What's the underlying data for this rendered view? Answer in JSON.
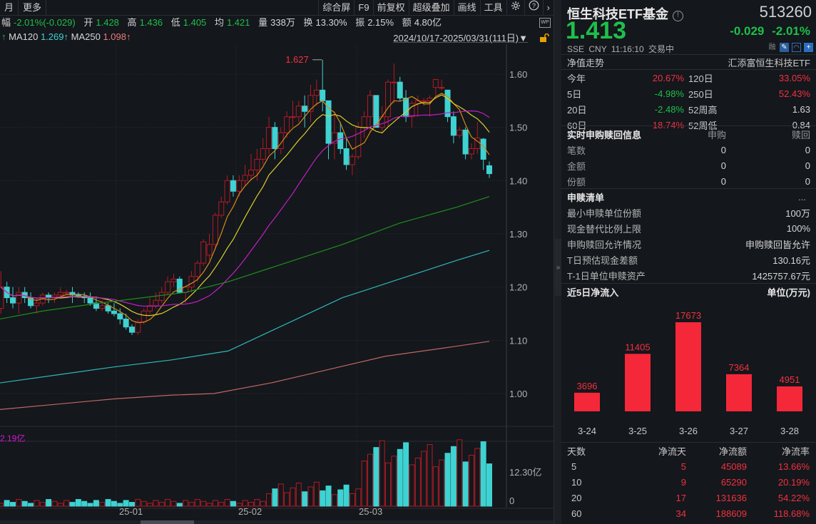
{
  "toolbar": {
    "left_items": [
      "月",
      "更多"
    ],
    "right_items": [
      "综合屏",
      "F9",
      "前复权",
      "超级叠加",
      "画线",
      "工具"
    ],
    "settings_icon": "gear-icon",
    "help_icon": "question-icon",
    "next_icon": "chevron-right-icon"
  },
  "quote_bar": {
    "change_label": "幅",
    "change_value": "-2.01%(-0.029)",
    "open_label": "开",
    "open_value": "1.428",
    "high_label": "高",
    "high_value": "1.436",
    "low_label": "低",
    "low_value": "1.405",
    "avg_label": "均",
    "avg_value": "1.421",
    "volume_label": "量",
    "volume_value": "338万",
    "turnover_label": "换",
    "turnover_value": "13.30%",
    "amplitude_label": "振",
    "amplitude_value": "2.15%",
    "amount_label": "额",
    "amount_value": "4.80亿"
  },
  "ma_bar": {
    "arrow": "↑",
    "ma120_label": "MA120",
    "ma120_value": "1.269↑",
    "ma250_label": "MA250",
    "ma250_value": "1.098↑"
  },
  "date_range": "2024/10/17-2025/03/31(111日)▼",
  "chart": {
    "y_ticks": [
      "1.60",
      "1.50",
      "1.40",
      "1.30",
      "1.20",
      "1.10",
      "1.00"
    ],
    "x_ticks": [
      "25-01",
      "25-02",
      "25-03"
    ],
    "max_label": "1.627",
    "volume_max_label": "2.19亿",
    "volume_ticks": [
      "12.30亿",
      "0"
    ]
  },
  "colors": {
    "up": "#f2313e",
    "down": "#3fd2d2",
    "up_candle": "#b01c24",
    "ma5": "#e0e0e0",
    "ma10": "#d58a1a",
    "ma20": "#d8cf2a",
    "ma60": "#c51ec5",
    "ma_green": "#1e8f1e",
    "ma120": "#2fb7b7",
    "ma250": "#c06666",
    "bg": "#14171c"
  },
  "panel": {
    "name": "恒生科技ETF基金",
    "code": "513260",
    "price": "1.413",
    "change": "-0.029",
    "change_pct": "-2.01%",
    "exchange": "SSE",
    "currency": "CNY",
    "time": "11:16:10",
    "status": "交易中",
    "margin_label": "融"
  },
  "nav": {
    "title": "净值走势",
    "fund_name": "汇添富恒生科技ETF",
    "rows": [
      {
        "k1": "今年",
        "v1": "20.67%",
        "c1": "r",
        "k2": "120日",
        "v2": "33.05%",
        "c2": "r"
      },
      {
        "k1": "5日",
        "v1": "-4.98%",
        "c1": "g",
        "k2": "250日",
        "v2": "52.43%",
        "c2": "r"
      },
      {
        "k1": "20日",
        "v1": "-2.48%",
        "c1": "g",
        "k2": "52周高",
        "v2": "1.63",
        "c2": "w"
      },
      {
        "k1": "60日",
        "v1": "18.74%",
        "c1": "r",
        "k2": "52周低",
        "v2": "0.84",
        "c2": "w"
      }
    ]
  },
  "realtime": {
    "title": "实时申购赎回信息",
    "col_buy": "申购",
    "col_redeem": "赎回",
    "rows": [
      {
        "label": "笔数",
        "buy": "0",
        "redeem": "0"
      },
      {
        "label": "金额",
        "buy": "0",
        "redeem": "0"
      },
      {
        "label": "份额",
        "buy": "0",
        "redeem": "0"
      }
    ]
  },
  "redemption": {
    "title": "申赎清单",
    "more": "...",
    "rows": [
      {
        "label": "最小申赎单位份额",
        "value": "100万"
      },
      {
        "label": "现金替代比例上限",
        "value": "100%"
      },
      {
        "label": "申购赎回允许情况",
        "value": "申购赎回皆允许"
      },
      {
        "label": "T日预估现金差额",
        "value": "130.16元"
      },
      {
        "label": "T-1日单位申赎资产",
        "value": "1425757.67元"
      }
    ]
  },
  "inflow": {
    "title": "近5日净流入",
    "unit": "单位(万元)"
  },
  "chart_data": {
    "type": "bar",
    "title": "近5日净流入",
    "categories": [
      "3-24",
      "3-25",
      "3-26",
      "3-27",
      "3-28"
    ],
    "values": [
      3696,
      11405,
      17673,
      7364,
      4951
    ],
    "ylabel": "单位(万元)",
    "ylim": [
      0,
      17673
    ]
  },
  "flow_table": {
    "headers": [
      "天数",
      "净流天",
      "净流额",
      "净流率"
    ],
    "rows": [
      [
        "5",
        "5",
        "45089",
        "13.66%"
      ],
      [
        "10",
        "9",
        "65290",
        "20.19%"
      ],
      [
        "20",
        "17",
        "131636",
        "54.22%"
      ],
      [
        "60",
        "34",
        "188609",
        "118.68%"
      ]
    ]
  }
}
